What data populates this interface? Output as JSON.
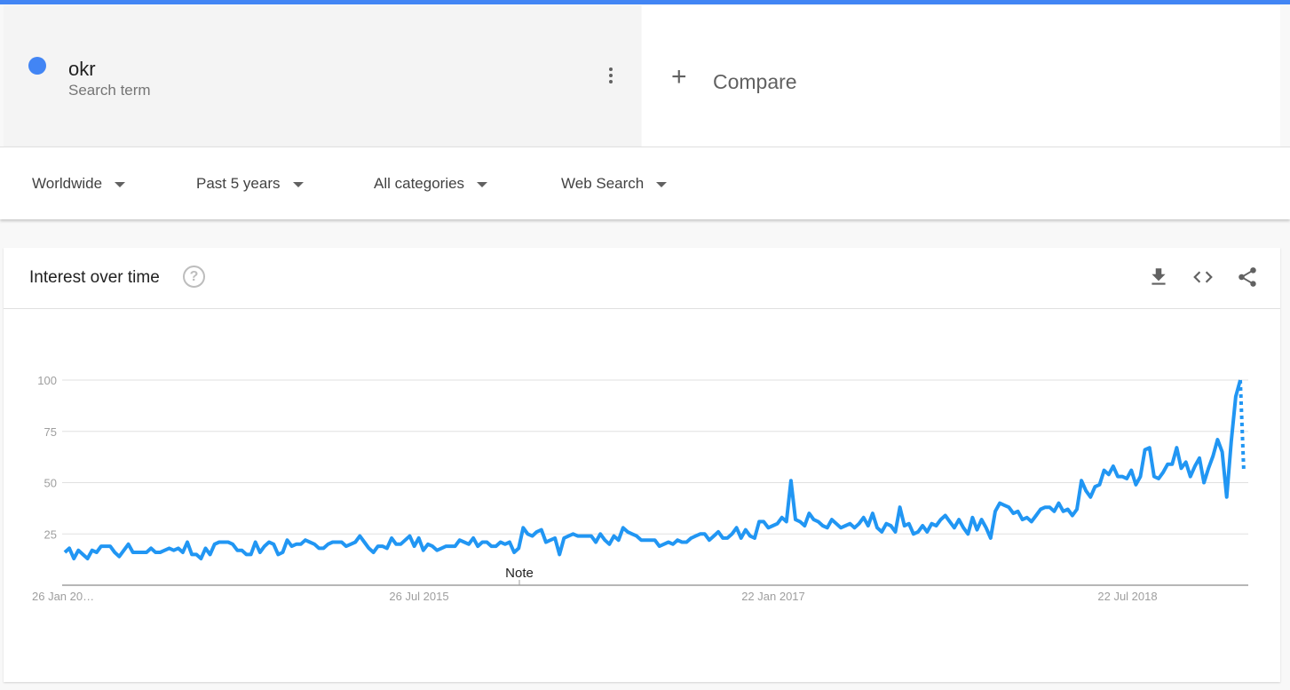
{
  "term": {
    "name": "okr",
    "subtitle": "Search term",
    "color": "#4285f4"
  },
  "compare": {
    "label": "Compare",
    "icon": "plus-icon"
  },
  "filters": [
    {
      "label": "Worldwide"
    },
    {
      "label": "Past 5 years"
    },
    {
      "label": "All categories"
    },
    {
      "label": "Web Search"
    }
  ],
  "card": {
    "title": "Interest over time",
    "help_icon": "?",
    "actions": [
      "download-icon",
      "embed-icon",
      "share-icon"
    ]
  },
  "chart_data": {
    "type": "line",
    "interval": "weekly",
    "series_color": "#2196f3",
    "ylim": [
      0,
      100
    ],
    "y_ticks": [
      "25",
      "50",
      "75",
      "100"
    ],
    "x_tick_labels": [
      "26 Jan 20…",
      "26 Jul 2015",
      "22 Jan 2017",
      "22 Jul 2018"
    ],
    "annotation": "Note",
    "grid": true,
    "values": [
      16,
      18,
      13,
      17,
      15,
      13,
      17,
      16,
      19,
      19,
      19,
      16,
      14,
      17,
      20,
      16,
      16,
      16,
      16,
      18,
      16,
      16,
      17,
      18,
      17,
      18,
      16,
      21,
      15,
      15,
      13,
      18,
      15,
      20,
      21,
      21,
      21,
      20,
      17,
      17,
      15,
      15,
      21,
      16,
      19,
      21,
      20,
      15,
      16,
      22,
      19,
      20,
      20,
      22,
      21,
      20,
      18,
      18,
      20,
      21,
      21,
      21,
      19,
      20,
      21,
      24,
      21,
      18,
      16,
      19,
      19,
      18,
      23,
      20,
      20,
      22,
      24,
      19,
      23,
      17,
      20,
      19,
      17,
      18,
      19,
      19,
      19,
      22,
      21,
      20,
      23,
      19,
      21,
      21,
      19,
      19,
      21,
      20,
      21,
      16,
      18,
      28,
      25,
      24,
      26,
      27,
      21,
      22,
      23,
      15,
      23,
      24,
      25,
      24,
      24,
      24,
      24,
      21,
      25,
      22,
      20,
      24,
      22,
      28,
      26,
      25,
      24,
      22,
      22,
      22,
      22,
      19,
      20,
      21,
      20,
      22,
      21,
      21,
      23,
      24,
      25,
      25,
      22,
      24,
      26,
      23,
      23,
      25,
      28,
      23,
      27,
      24,
      23,
      31,
      31,
      28,
      29,
      30,
      33,
      31,
      51,
      32,
      31,
      29,
      35,
      32,
      31,
      29,
      28,
      32,
      30,
      28,
      29,
      30,
      28,
      30,
      33,
      29,
      35,
      28,
      26,
      30,
      29,
      26,
      38,
      29,
      30,
      25,
      26,
      29,
      26,
      30,
      29,
      32,
      34,
      31,
      28,
      32,
      28,
      25,
      33,
      27,
      32,
      28,
      23,
      36,
      40,
      39,
      38,
      35,
      36,
      32,
      33,
      31,
      34,
      37,
      38,
      38,
      36,
      40,
      36,
      37,
      34,
      37,
      51,
      46,
      43,
      48,
      49,
      56,
      54,
      58,
      53,
      53,
      52,
      56,
      49,
      53,
      66,
      67,
      53,
      52,
      55,
      59,
      59,
      67,
      57,
      60,
      53,
      58,
      62,
      50,
      57,
      63,
      71,
      65,
      43,
      70,
      92,
      100
    ],
    "partial_value": 55
  }
}
